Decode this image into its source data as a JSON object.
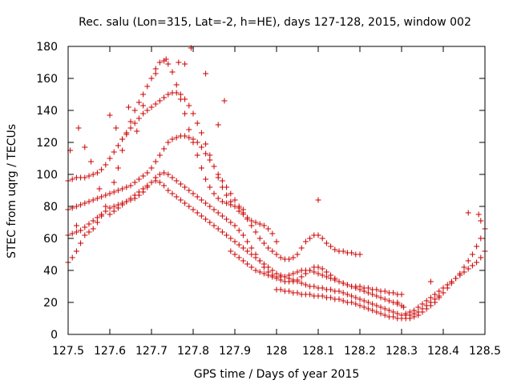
{
  "chart_data": {
    "type": "scatter",
    "title": "Rec. salu (Lon=315, Lat=-2, h=HE), days 127-128, 2015, window 002",
    "xlabel": "GPS time / Days of year 2015",
    "ylabel": "STEC from uqrg / TECUs",
    "xlim": [
      127.5,
      128.5
    ],
    "ylim": [
      0,
      180
    ],
    "x_ticks": [
      "127.5",
      "127.6",
      "127.7",
      "127.8",
      "127.9",
      "128",
      "128.1",
      "128.2",
      "128.3",
      "128.4",
      "128.5"
    ],
    "y_ticks": [
      "0",
      "20",
      "40",
      "60",
      "80",
      "100",
      "120",
      "140",
      "160",
      "180"
    ],
    "grid": false,
    "legend": "none",
    "marker": "plus",
    "color": "#cc0000",
    "series": [
      {
        "x": [
          127.5,
          127.51,
          127.52,
          127.53,
          127.54,
          127.55,
          127.56,
          127.57,
          127.58,
          127.59,
          127.6,
          127.61,
          127.62,
          127.63,
          127.64,
          127.65,
          127.66,
          127.67,
          127.68,
          127.69,
          127.7,
          127.71,
          127.72,
          127.73,
          127.74,
          127.75,
          127.76,
          127.77,
          127.78,
          127.79,
          127.8,
          127.81,
          127.82,
          127.83,
          127.84,
          127.85,
          127.86,
          127.87,
          127.88,
          127.89,
          127.9,
          127.91,
          127.92
        ],
        "y": [
          45,
          48,
          52,
          57,
          62,
          64,
          66,
          70,
          74,
          80,
          88,
          95,
          104,
          115,
          125,
          133,
          140,
          145,
          150,
          155,
          160,
          166,
          170,
          171,
          169,
          164,
          156,
          147,
          138,
          128,
          120,
          112,
          104,
          97,
          92,
          88,
          85,
          83,
          82,
          81,
          80,
          79,
          78
        ]
      },
      {
        "x": [
          127.5,
          127.51,
          127.52,
          127.53,
          127.54,
          127.55,
          127.56,
          127.57,
          127.58,
          127.59,
          127.6,
          127.61,
          127.62,
          127.63,
          127.64,
          127.65,
          127.66,
          127.67,
          127.68,
          127.69,
          127.7,
          127.71,
          127.72,
          127.73,
          127.74,
          127.75,
          127.76,
          127.77,
          127.78,
          127.79,
          127.8,
          127.81,
          127.82,
          127.83,
          127.84,
          127.85,
          127.86,
          127.87,
          127.88,
          127.89,
          127.9,
          127.91,
          127.92,
          127.93,
          127.94,
          127.95,
          127.96,
          127.97,
          127.98,
          127.99,
          128.0
        ],
        "y": [
          96,
          97,
          98,
          98,
          98,
          99,
          100,
          101,
          103,
          106,
          110,
          114,
          118,
          122,
          126,
          129,
          132,
          135,
          138,
          140,
          142,
          144,
          146,
          148,
          150,
          151,
          151,
          150,
          147,
          143,
          138,
          132,
          126,
          119,
          112,
          105,
          98,
          92,
          87,
          83,
          80,
          77,
          75,
          73,
          71,
          70,
          69,
          68,
          66,
          63,
          58
        ]
      },
      {
        "x": [
          127.5,
          127.51,
          127.52,
          127.53,
          127.54,
          127.55,
          127.56,
          127.57,
          127.58,
          127.59,
          127.6,
          127.61,
          127.62,
          127.63,
          127.64,
          127.65,
          127.66,
          127.67,
          127.68,
          127.69,
          127.7,
          127.71,
          127.72,
          127.73,
          127.74,
          127.75,
          127.76,
          127.77,
          127.78,
          127.79,
          127.8,
          127.81,
          127.82,
          127.83,
          127.84,
          127.85,
          127.86,
          127.87,
          127.88,
          127.89,
          127.9,
          127.91,
          127.92,
          127.93,
          127.94,
          127.95,
          127.96,
          127.97,
          127.98,
          127.99,
          128.0,
          128.01,
          128.02,
          128.03,
          128.04,
          128.05,
          128.06,
          128.07,
          128.08,
          128.09,
          128.1,
          128.11,
          128.12,
          128.13,
          128.14,
          128.15,
          128.16,
          128.17,
          128.18,
          128.19,
          128.2
        ],
        "y": [
          78,
          79,
          80,
          81,
          82,
          83,
          84,
          85,
          86,
          87,
          88,
          89,
          90,
          91,
          92,
          93,
          95,
          97,
          99,
          101,
          104,
          108,
          112,
          116,
          120,
          122,
          123,
          124,
          124,
          123,
          122,
          120,
          117,
          113,
          109,
          105,
          100,
          96,
          92,
          88,
          84,
          80,
          76,
          72,
          68,
          64,
          60,
          57,
          54,
          52,
          50,
          48,
          47,
          47,
          48,
          50,
          54,
          58,
          60,
          62,
          62,
          60,
          57,
          55,
          53,
          52,
          52,
          51,
          51,
          50,
          50
        ]
      },
      {
        "x": [
          127.5,
          127.51,
          127.52,
          127.53,
          127.54,
          127.55,
          127.56,
          127.57,
          127.58,
          127.59,
          127.6,
          127.61,
          127.62,
          127.63,
          127.64,
          127.65,
          127.66,
          127.67,
          127.68,
          127.69,
          127.7,
          127.71,
          127.72,
          127.73,
          127.74,
          127.75,
          127.76,
          127.77,
          127.78,
          127.79,
          127.8,
          127.81,
          127.82,
          127.83,
          127.84,
          127.85,
          127.86,
          127.87,
          127.88,
          127.89,
          127.9,
          127.91,
          127.92,
          127.93,
          127.94,
          127.95,
          127.96,
          127.97,
          127.98,
          127.99,
          128.0,
          128.01,
          128.02,
          128.03,
          128.04,
          128.05,
          128.06,
          128.07,
          128.08,
          128.09,
          128.1,
          128.11,
          128.12,
          128.13,
          128.14,
          128.15,
          128.16,
          128.17,
          128.18,
          128.19,
          128.2,
          128.21,
          128.22,
          128.23,
          128.24,
          128.25,
          128.26,
          128.27,
          128.28,
          128.29,
          128.3
        ],
        "y": [
          62,
          63,
          64,
          65,
          67,
          69,
          71,
          73,
          75,
          77,
          79,
          80,
          81,
          82,
          83,
          84,
          85,
          87,
          89,
          92,
          95,
          98,
          100,
          101,
          100,
          98,
          96,
          94,
          92,
          90,
          88,
          86,
          84,
          82,
          80,
          78,
          76,
          74,
          72,
          70,
          68,
          65,
          62,
          58,
          54,
          50,
          46,
          42,
          39,
          37,
          35,
          34,
          33,
          33,
          33,
          34,
          36,
          38,
          40,
          42,
          42,
          41,
          39,
          37,
          35,
          33,
          32,
          31,
          30,
          29,
          28,
          27,
          26,
          25,
          24,
          23,
          22,
          21,
          20,
          19,
          18
        ]
      },
      {
        "x": [
          127.6,
          127.61,
          127.62,
          127.63,
          127.64,
          127.65,
          127.66,
          127.67,
          127.68,
          127.69,
          127.7,
          127.71,
          127.72,
          127.73,
          127.74,
          127.75,
          127.76,
          127.77,
          127.78,
          127.79,
          127.8,
          127.81,
          127.82,
          127.83,
          127.84,
          127.85,
          127.86,
          127.87,
          127.88,
          127.89,
          127.9,
          127.91,
          127.92,
          127.93,
          127.94,
          127.95,
          127.96,
          127.97,
          127.98,
          127.99,
          128.0,
          128.01,
          128.02,
          128.03,
          128.04,
          128.05,
          128.06,
          128.07,
          128.08,
          128.09,
          128.1,
          128.11,
          128.12,
          128.13,
          128.14,
          128.15,
          128.16,
          128.17,
          128.18,
          128.19,
          128.2,
          128.21,
          128.22,
          128.23,
          128.24,
          128.25,
          128.26,
          128.27,
          128.28,
          128.29,
          128.3,
          128.31,
          128.32,
          128.33,
          128.34,
          128.35,
          128.36,
          128.37,
          128.38,
          128.39,
          128.4
        ],
        "y": [
          75,
          77,
          79,
          81,
          83,
          85,
          87,
          89,
          91,
          93,
          95,
          96,
          95,
          93,
          90,
          88,
          86,
          84,
          82,
          80,
          78,
          76,
          74,
          72,
          70,
          68,
          66,
          64,
          62,
          60,
          58,
          56,
          54,
          52,
          50,
          48,
          46,
          44,
          42,
          40,
          38,
          37,
          36,
          35,
          34,
          33,
          32,
          31,
          30,
          30,
          29,
          29,
          28,
          28,
          27,
          27,
          26,
          25,
          24,
          23,
          22,
          21,
          20,
          19,
          18,
          17,
          16,
          15,
          14,
          13,
          12,
          12,
          12,
          13,
          14,
          16,
          18,
          20,
          22,
          24,
          26
        ]
      },
      {
        "x": [
          128.0,
          128.01,
          128.02,
          128.03,
          128.04,
          128.05,
          128.06,
          128.07,
          128.08,
          128.09,
          128.1,
          128.11,
          128.12,
          128.13,
          128.14,
          128.15,
          128.16,
          128.17,
          128.18,
          128.19,
          128.2,
          128.21,
          128.22,
          128.23,
          128.24,
          128.25,
          128.26,
          128.27,
          128.28,
          128.29,
          128.3,
          128.31,
          128.32,
          128.33,
          128.34,
          128.35,
          128.36,
          128.37,
          128.38,
          128.39,
          128.4,
          128.41,
          128.42,
          128.43,
          128.44,
          128.45,
          128.46,
          128.47,
          128.48,
          128.49,
          128.5
        ],
        "y": [
          28,
          28,
          27,
          27,
          26,
          26,
          25,
          25,
          25,
          24,
          24,
          24,
          23,
          23,
          22,
          22,
          21,
          20,
          20,
          19,
          18,
          17,
          16,
          15,
          14,
          13,
          12,
          11,
          11,
          10,
          10,
          10,
          10,
          11,
          12,
          14,
          16,
          18,
          20,
          23,
          26,
          29,
          32,
          35,
          38,
          42,
          46,
          50,
          55,
          60,
          66
        ]
      },
      {
        "x": [
          127.89,
          127.9,
          127.91,
          127.92,
          127.93,
          127.94,
          127.95,
          127.96,
          127.97,
          127.98,
          127.99,
          128.0,
          128.01,
          128.02,
          128.03,
          128.04,
          128.05,
          128.06,
          128.07,
          128.08,
          128.09,
          128.1,
          128.11,
          128.12,
          128.13,
          128.14,
          128.15,
          128.16,
          128.17,
          128.18,
          128.19,
          128.2,
          128.21,
          128.22,
          128.23,
          128.24,
          128.25,
          128.26,
          128.27,
          128.28,
          128.29,
          128.3
        ],
        "y": [
          52,
          50,
          48,
          46,
          44,
          42,
          40,
          39,
          38,
          37,
          36,
          36,
          36,
          36,
          37,
          38,
          39,
          40,
          40,
          40,
          39,
          38,
          37,
          36,
          35,
          34,
          33,
          32,
          31,
          30,
          30,
          30,
          29,
          29,
          28,
          28,
          27,
          27,
          26,
          26,
          25,
          25
        ]
      },
      {
        "x": [
          128.3,
          128.31,
          128.32,
          128.33,
          128.34,
          128.35,
          128.36,
          128.37,
          128.38,
          128.39,
          128.4,
          128.41,
          128.42,
          128.43,
          128.44,
          128.45,
          128.46,
          128.47,
          128.48,
          128.49,
          128.5
        ],
        "y": [
          12,
          13,
          14,
          15,
          17,
          19,
          21,
          23,
          25,
          27,
          29,
          31,
          33,
          35,
          37,
          39,
          41,
          43,
          45,
          48,
          52
        ]
      },
      {
        "x": [
          127.505,
          127.52,
          127.525,
          127.54,
          127.555,
          127.575,
          127.6,
          127.615,
          127.63,
          127.645,
          127.665,
          127.68,
          127.71,
          127.735,
          127.765,
          127.78,
          127.795,
          127.83,
          127.86,
          127.875,
          128.1,
          128.29,
          128.305,
          128.37,
          128.46,
          128.485,
          128.49
        ],
        "y": [
          115,
          68,
          129,
          117,
          108,
          91,
          137,
          129,
          122,
          142,
          127,
          143,
          163,
          172,
          170,
          169,
          179,
          163,
          131,
          146,
          84,
          20,
          17,
          33,
          76,
          75,
          71
        ]
      }
    ]
  }
}
